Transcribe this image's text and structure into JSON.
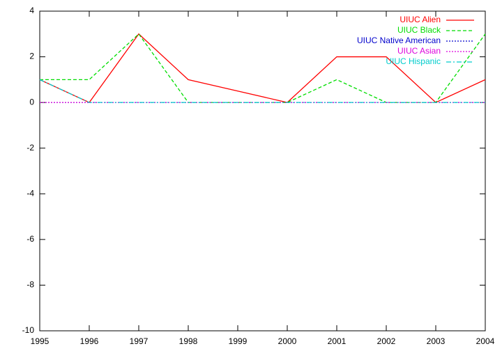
{
  "chart_data": {
    "type": "line",
    "x": [
      1995,
      1996,
      1997,
      1998,
      1999,
      2000,
      2001,
      2002,
      2003,
      2004
    ],
    "series": [
      {
        "name": "UIUC Alien",
        "color": "#ff0000",
        "dash": "solid",
        "values": [
          1,
          0,
          3,
          1,
          0.5,
          0,
          2,
          2,
          0,
          1
        ]
      },
      {
        "name": "UIUC Black",
        "color": "#00dd00",
        "dash": "dashed",
        "values": [
          1,
          1,
          3,
          0,
          0,
          0,
          1,
          0,
          0,
          3
        ]
      },
      {
        "name": "UIUC Native American",
        "color": "#0000cc",
        "dash": "dotted",
        "values": [
          0,
          0,
          0,
          0,
          0,
          0,
          0,
          0,
          0,
          0
        ]
      },
      {
        "name": "UIUC Asian",
        "color": "#dd00dd",
        "dash": "dotted",
        "values": [
          0,
          0,
          0,
          0,
          0,
          0,
          0,
          0,
          0,
          0
        ]
      },
      {
        "name": "UIUC Hispanic",
        "color": "#00cccc",
        "dash": "dashdot",
        "values": [
          1,
          0,
          0,
          0,
          0,
          0,
          0,
          0,
          0,
          0
        ]
      }
    ],
    "xlim": [
      1995,
      2004
    ],
    "xticks": [
      1995,
      1996,
      1997,
      1998,
      1999,
      2000,
      2001,
      2002,
      2003,
      2004
    ],
    "ylim": [
      -10,
      4
    ],
    "yticks": [
      -10,
      -8,
      -6,
      -4,
      -2,
      0,
      2,
      4
    ],
    "grid": false,
    "legend": "top-right"
  }
}
